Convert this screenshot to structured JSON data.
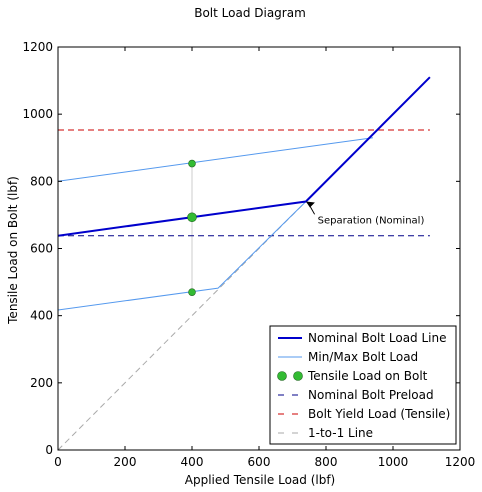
{
  "chart_data": {
    "type": "line",
    "title": "Bolt Load Diagram",
    "xlabel": "Applied Tensile Load (lbf)",
    "ylabel": "Tensile Load on Bolt (lbf)",
    "xlim": [
      0,
      1200
    ],
    "ylim": [
      0,
      1200
    ],
    "xticks": [
      0,
      200,
      400,
      600,
      800,
      1000,
      1200
    ],
    "yticks": [
      0,
      200,
      400,
      600,
      800,
      1000,
      1200
    ],
    "grid": false,
    "legend_position": "lower-right",
    "series": [
      {
        "name": "Nominal Bolt Load Line",
        "color": "#0000cc",
        "style": "solid-thick",
        "points": [
          [
            0,
            638
          ],
          [
            740,
            740
          ],
          [
            1110,
            1110
          ]
        ]
      },
      {
        "name": "Min/Max Bolt Load",
        "color": "#5599ee",
        "style": "solid-thin",
        "segments": [
          [
            [
              0,
              800
            ],
            [
              940,
              930
            ]
          ],
          [
            [
              0,
              417
            ],
            [
              478,
              482
            ],
            [
              740,
              740
            ]
          ]
        ]
      },
      {
        "name": "Tensile Load on Bolt",
        "color": "#33bb33",
        "style": "markers",
        "points": [
          [
            400,
            853
          ],
          [
            400,
            693
          ],
          [
            400,
            470
          ]
        ],
        "marker_sizes": [
          3.5,
          4.5,
          3.5
        ]
      },
      {
        "name": "Nominal Bolt Preload",
        "color": "#000088",
        "style": "dashed",
        "points": [
          [
            0,
            638
          ],
          [
            1110,
            638
          ]
        ]
      },
      {
        "name": "Bolt Yield Load (Tensile)",
        "color": "#cc0000",
        "style": "dashed",
        "points": [
          [
            0,
            953
          ],
          [
            1110,
            953
          ]
        ]
      },
      {
        "name": "1-to-1 Line",
        "color": "#aaaaaa",
        "style": "dashed",
        "points": [
          [
            0,
            0
          ],
          [
            740,
            740
          ]
        ]
      }
    ],
    "vertical_marker_line": {
      "x": 400,
      "y_range": [
        470,
        853
      ],
      "color": "#cccccc"
    },
    "annotation": {
      "text": "Separation (Nominal)",
      "arrow_to": [
        740,
        740
      ],
      "text_at": [
        775,
        675
      ]
    }
  }
}
